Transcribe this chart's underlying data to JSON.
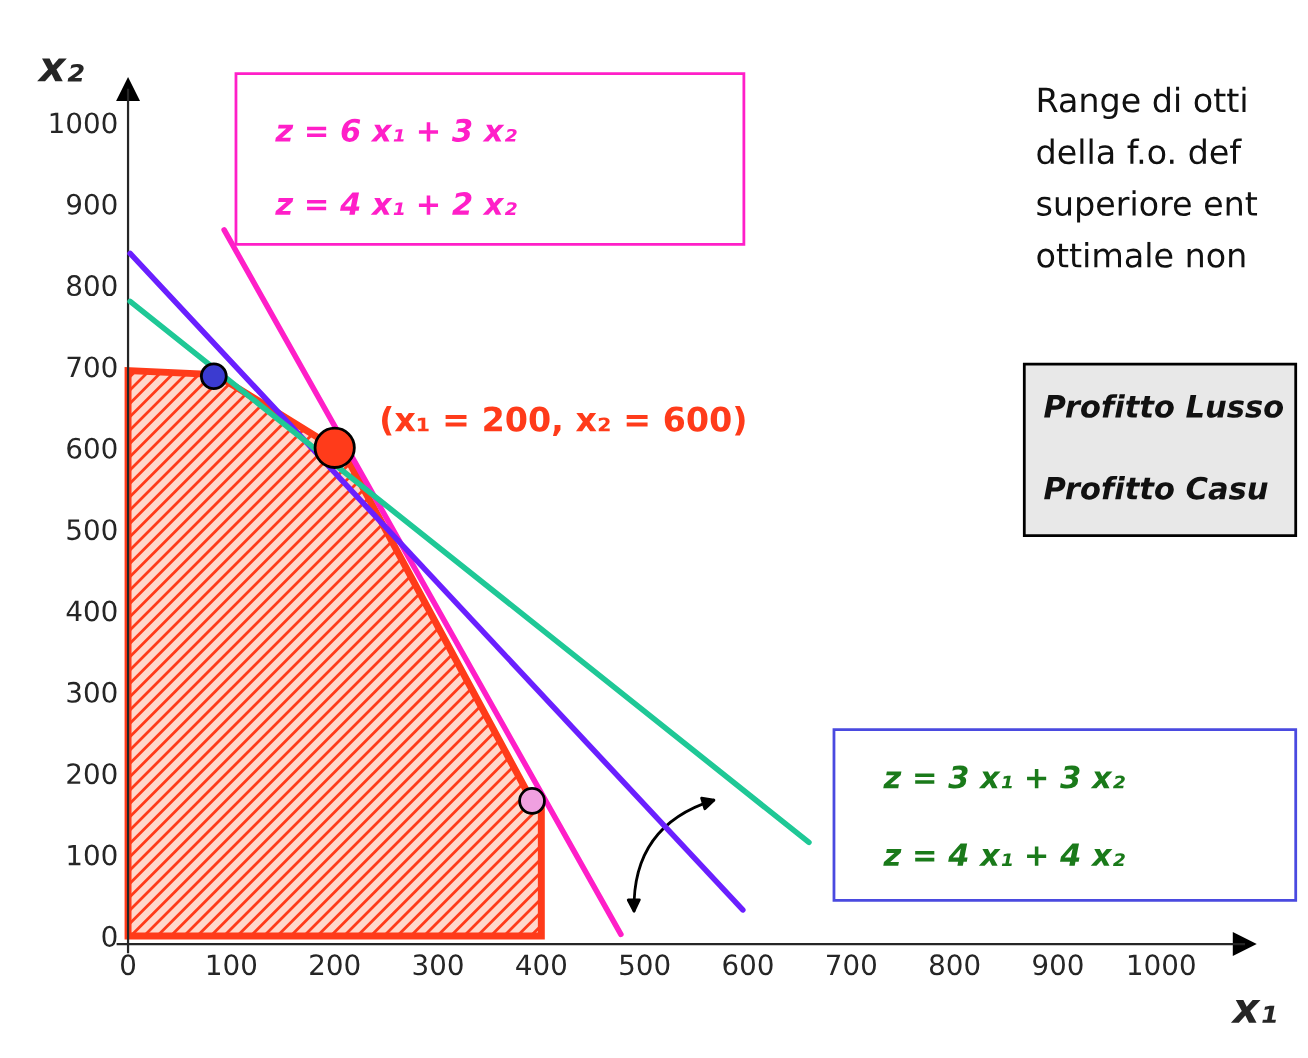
{
  "chart_data": {
    "type": "line",
    "xlabel": "x₁",
    "ylabel": "x₂",
    "xlim": [
      -10,
      1080
    ],
    "ylim": [
      -20,
      1040
    ],
    "xticks": [
      0,
      100,
      200,
      300,
      400,
      500,
      600,
      700,
      800,
      900,
      1000
    ],
    "yticks": [
      0,
      100,
      200,
      300,
      400,
      500,
      600,
      700,
      800,
      900,
      1000
    ],
    "series": [
      {
        "type": "area",
        "color": "#ff3b1a",
        "x": [
          0,
          0,
          85,
          200,
          215,
          391,
          400,
          400
        ],
        "values": [
          0,
          695,
          690,
          600,
          580,
          166,
          160,
          0
        ]
      },
      {
        "color": "#ff1fc8",
        "x": [
          93,
          477
        ],
        "values": [
          868,
          2
        ]
      },
      {
        "color": "#6a1fff",
        "x": [
          2,
          595
        ],
        "values": [
          839,
          32
        ]
      },
      {
        "color": "#1fc896",
        "x": [
          2,
          659
        ],
        "values": [
          780,
          115
        ]
      },
      {
        "type": "bubble",
        "colors": [
          "#3b3bd0",
          "#ff3b1a",
          "#f0a0e0"
        ],
        "x": [
          83,
          200,
          391
        ],
        "values": [
          688,
          600,
          166
        ],
        "sizes": [
          0.4,
          1,
          0.4
        ]
      }
    ],
    "annotations": [
      {
        "text": "(x₁ = 200, x₂ = 600)",
        "x": 200,
        "y": 600
      },
      "z = 6 x₁ + 3 x₂",
      "z = 4 x₁ + 2 x₂",
      "z = 3 x₁ + 3 x₂",
      "z = 4 x₁ + 4 x₂",
      "Range di otti",
      "della f.o. def",
      "superiore ent",
      "ottimale non",
      "Profitto Lusso",
      "Profitto Casu"
    ]
  }
}
